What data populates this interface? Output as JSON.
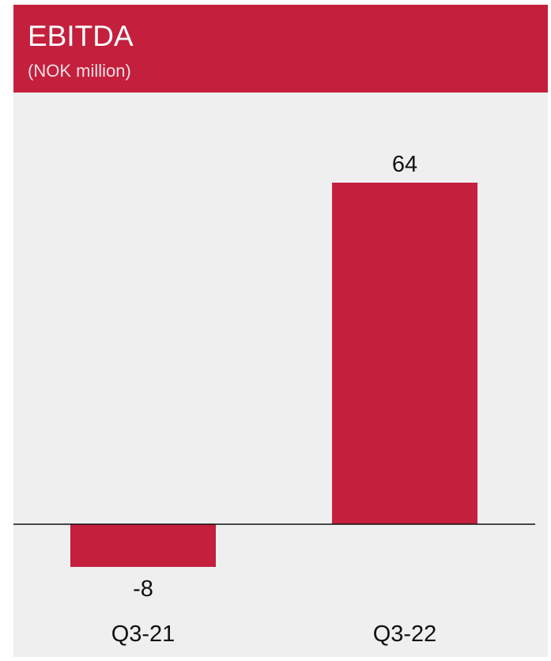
{
  "header": {
    "title": "EBITDA",
    "subtitle": "(NOK million)"
  },
  "colors": {
    "header_bg": "#c41f3d",
    "bar": "#c41f3d",
    "panel_bg": "#efefef",
    "axis": "#111111"
  },
  "chart_data": {
    "type": "bar",
    "title": "EBITDA",
    "subtitle": "(NOK million)",
    "categories": [
      "Q3-21",
      "Q3-22"
    ],
    "values": [
      -8,
      64
    ],
    "value_labels": [
      "-8",
      "64"
    ],
    "xlabel": "",
    "ylabel": "",
    "ylim": [
      -8,
      64
    ],
    "grid": false,
    "legend": "none"
  }
}
